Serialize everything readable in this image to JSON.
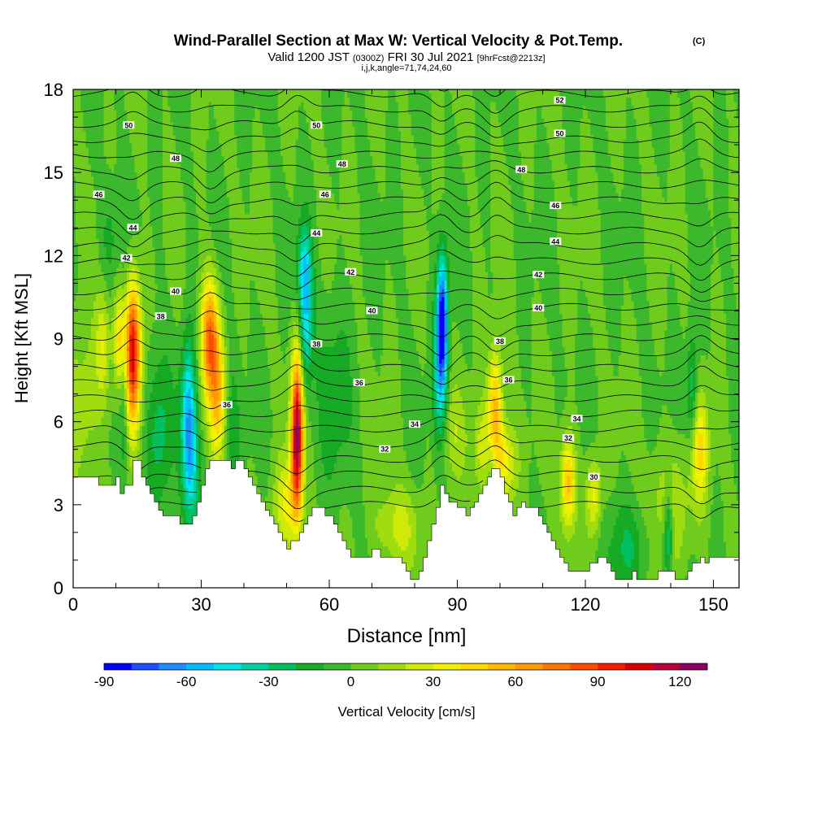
{
  "chart_data": {
    "type": "heatmap",
    "title": "Wind-Parallel Section at Max W: Vertical Velocity & Pot.Temp.",
    "title_mark": "(C)",
    "subtitle_main": "Valid 1200 JST",
    "subtitle_utc": "(0300Z)",
    "subtitle_date": "FRI 30 Jul 2021",
    "subtitle_fcst": "[9hrFcst@2213z]",
    "subtitle2": "i,j,k,angle=71,74,24,60",
    "xlabel": "Distance [nm]",
    "ylabel": "Height [Kft MSL]",
    "xlim": [
      0,
      156
    ],
    "ylim": [
      0,
      18
    ],
    "x_ticks": [
      0,
      30,
      60,
      90,
      120,
      150
    ],
    "y_ticks": [
      0,
      3,
      6,
      9,
      12,
      15,
      18
    ],
    "x_tick_labels": [
      "0",
      "30",
      "60",
      "90",
      "120",
      "150"
    ],
    "y_tick_labels": [
      "0",
      "3",
      "6",
      "9",
      "12",
      "15",
      "18"
    ],
    "colorbar": {
      "label": "Vertical Velocity [cm/s]",
      "min": -90,
      "max": 130,
      "step": 10,
      "tick_values": [
        -90,
        -60,
        -30,
        0,
        30,
        60,
        90,
        120
      ],
      "tick_labels": [
        "-90",
        "-60",
        "-30",
        "0",
        "30",
        "60",
        "90",
        "120"
      ],
      "colors": [
        "#0000ff",
        "#1f4fff",
        "#1f8bff",
        "#00bfff",
        "#00e5e5",
        "#00d1a0",
        "#00c060",
        "#17ab25",
        "#3cb82c",
        "#70cc1c",
        "#9fdd10",
        "#cfea08",
        "#f2f200",
        "#ffd800",
        "#ffba00",
        "#ff9a00",
        "#ff7500",
        "#ff4d00",
        "#f51d00",
        "#d80000",
        "#b8003d",
        "#8e0064"
      ]
    },
    "terrain_kft": [
      [
        0,
        4.0
      ],
      [
        6,
        4.0
      ],
      [
        6,
        3.7
      ],
      [
        10,
        3.7
      ],
      [
        10,
        4.0
      ],
      [
        11,
        4.0
      ],
      [
        11,
        3.4
      ],
      [
        12,
        3.4
      ],
      [
        12,
        3.7
      ],
      [
        14,
        3.7
      ],
      [
        14,
        4.6
      ],
      [
        16,
        4.6
      ],
      [
        16,
        4.0
      ],
      [
        17,
        4.0
      ],
      [
        17,
        3.7
      ],
      [
        18,
        3.7
      ],
      [
        18,
        3.4
      ],
      [
        19,
        3.4
      ],
      [
        19,
        3.1
      ],
      [
        20,
        3.1
      ],
      [
        20,
        2.8
      ],
      [
        21,
        2.8
      ],
      [
        21,
        2.6
      ],
      [
        25,
        2.6
      ],
      [
        25,
        2.3
      ],
      [
        28,
        2.3
      ],
      [
        28,
        2.6
      ],
      [
        29,
        2.6
      ],
      [
        29,
        3.1
      ],
      [
        30,
        3.1
      ],
      [
        30,
        3.7
      ],
      [
        31,
        3.7
      ],
      [
        31,
        4.3
      ],
      [
        32,
        4.3
      ],
      [
        32,
        4.6
      ],
      [
        37,
        4.6
      ],
      [
        37,
        4.3
      ],
      [
        38,
        4.3
      ],
      [
        38,
        4.6
      ],
      [
        40,
        4.6
      ],
      [
        40,
        4.3
      ],
      [
        41,
        4.3
      ],
      [
        41,
        4.0
      ],
      [
        42,
        4.0
      ],
      [
        42,
        3.7
      ],
      [
        43,
        3.7
      ],
      [
        43,
        3.4
      ],
      [
        44,
        3.4
      ],
      [
        44,
        3.1
      ],
      [
        45,
        3.1
      ],
      [
        45,
        2.8
      ],
      [
        46,
        2.8
      ],
      [
        46,
        2.6
      ],
      [
        47,
        2.6
      ],
      [
        47,
        2.3
      ],
      [
        48,
        2.3
      ],
      [
        48,
        2.0
      ],
      [
        49,
        2.0
      ],
      [
        49,
        1.7
      ],
      [
        50,
        1.7
      ],
      [
        50,
        1.4
      ],
      [
        51,
        1.4
      ],
      [
        51,
        1.7
      ],
      [
        53,
        1.7
      ],
      [
        53,
        2.0
      ],
      [
        54,
        2.0
      ],
      [
        54,
        2.3
      ],
      [
        55,
        2.3
      ],
      [
        55,
        2.6
      ],
      [
        56,
        2.6
      ],
      [
        56,
        2.9
      ],
      [
        59,
        2.9
      ],
      [
        59,
        2.6
      ],
      [
        61,
        2.6
      ],
      [
        61,
        2.3
      ],
      [
        62,
        2.3
      ],
      [
        62,
        2.0
      ],
      [
        63,
        2.0
      ],
      [
        63,
        1.7
      ],
      [
        64,
        1.7
      ],
      [
        64,
        1.4
      ],
      [
        65,
        1.4
      ],
      [
        65,
        1.1
      ],
      [
        70,
        1.1
      ],
      [
        70,
        1.4
      ],
      [
        72,
        1.4
      ],
      [
        72,
        1.1
      ],
      [
        77,
        1.1
      ],
      [
        77,
        0.9
      ],
      [
        78,
        0.9
      ],
      [
        78,
        0.6
      ],
      [
        79,
        0.6
      ],
      [
        79,
        0.3
      ],
      [
        81,
        0.3
      ],
      [
        81,
        0.6
      ],
      [
        82,
        0.6
      ],
      [
        82,
        1.1
      ],
      [
        83,
        1.1
      ],
      [
        83,
        1.7
      ],
      [
        84,
        1.7
      ],
      [
        84,
        2.3
      ],
      [
        85,
        2.3
      ],
      [
        85,
        2.9
      ],
      [
        86,
        2.9
      ],
      [
        86,
        3.7
      ],
      [
        87,
        3.7
      ],
      [
        87,
        3.4
      ],
      [
        88,
        3.4
      ],
      [
        88,
        3.1
      ],
      [
        90,
        3.1
      ],
      [
        90,
        2.9
      ],
      [
        92,
        2.9
      ],
      [
        92,
        2.6
      ],
      [
        93,
        2.6
      ],
      [
        93,
        2.9
      ],
      [
        94,
        2.9
      ],
      [
        94,
        3.1
      ],
      [
        95,
        3.1
      ],
      [
        95,
        3.4
      ],
      [
        96,
        3.4
      ],
      [
        96,
        3.7
      ],
      [
        97,
        3.7
      ],
      [
        97,
        4.0
      ],
      [
        98,
        4.0
      ],
      [
        98,
        4.3
      ],
      [
        100,
        4.3
      ],
      [
        100,
        4.0
      ],
      [
        101,
        4.0
      ],
      [
        101,
        3.4
      ],
      [
        102,
        3.4
      ],
      [
        102,
        3.1
      ],
      [
        103,
        3.1
      ],
      [
        103,
        2.6
      ],
      [
        104,
        2.6
      ],
      [
        104,
        2.9
      ],
      [
        105,
        2.9
      ],
      [
        105,
        3.1
      ],
      [
        106,
        3.1
      ],
      [
        106,
        2.9
      ],
      [
        109,
        2.9
      ],
      [
        109,
        2.6
      ],
      [
        110,
        2.6
      ],
      [
        110,
        2.3
      ],
      [
        111,
        2.3
      ],
      [
        111,
        2.0
      ],
      [
        112,
        2.0
      ],
      [
        112,
        1.7
      ],
      [
        113,
        1.7
      ],
      [
        113,
        1.4
      ],
      [
        114,
        1.4
      ],
      [
        114,
        1.1
      ],
      [
        115,
        1.1
      ],
      [
        115,
        0.9
      ],
      [
        116,
        0.9
      ],
      [
        116,
        0.6
      ],
      [
        121,
        0.6
      ],
      [
        121,
        0.9
      ],
      [
        123,
        0.9
      ],
      [
        123,
        1.1
      ],
      [
        125,
        1.1
      ],
      [
        125,
        0.9
      ],
      [
        126,
        0.9
      ],
      [
        126,
        0.6
      ],
      [
        127,
        0.6
      ],
      [
        127,
        0.3
      ],
      [
        131,
        0.3
      ],
      [
        131,
        0.6
      ],
      [
        132,
        0.6
      ],
      [
        132,
        0.3
      ],
      [
        137,
        0.3
      ],
      [
        137,
        0.6
      ],
      [
        141,
        0.6
      ],
      [
        141,
        0.3
      ],
      [
        144,
        0.3
      ],
      [
        144,
        0.6
      ],
      [
        145,
        0.6
      ],
      [
        145,
        0.9
      ],
      [
        147,
        0.9
      ],
      [
        147,
        1.1
      ],
      [
        148,
        1.1
      ],
      [
        148,
        0.9
      ],
      [
        149,
        0.9
      ],
      [
        149,
        1.1
      ],
      [
        156,
        1.1
      ]
    ],
    "updrafts": [
      {
        "x": 14,
        "z": 8.5,
        "w": 105,
        "sx": 1.3,
        "sz": 1.8
      },
      {
        "x": 11,
        "z": 9.0,
        "w": 45,
        "sx": 1.0,
        "sz": 1.2
      },
      {
        "x": 7,
        "z": 8.8,
        "w": 30,
        "sx": 1.2,
        "sz": 1.5
      },
      {
        "x": 32,
        "z": 9.0,
        "w": 75,
        "sx": 1.5,
        "sz": 1.5
      },
      {
        "x": 34,
        "z": 6.8,
        "w": 45,
        "sx": 1.5,
        "sz": 1.6
      },
      {
        "x": 52.5,
        "z": 5.5,
        "w": 120,
        "sx": 1.0,
        "sz": 2.0
      },
      {
        "x": 50,
        "z": 3.0,
        "w": 30,
        "sx": 2.2,
        "sz": 1.2
      },
      {
        "x": 99,
        "z": 6.6,
        "w": 55,
        "sx": 1.2,
        "sz": 1.5
      },
      {
        "x": 101,
        "z": 4.5,
        "w": 40,
        "sx": 2.0,
        "sz": 1.0
      },
      {
        "x": 96,
        "z": 5.0,
        "w": 25,
        "sx": 1.5,
        "sz": 1.2
      },
      {
        "x": 116,
        "z": 3.8,
        "w": 55,
        "sx": 1.2,
        "sz": 1.2
      },
      {
        "x": 122,
        "z": 3.3,
        "w": 35,
        "sx": 1.2,
        "sz": 1.0
      },
      {
        "x": 147,
        "z": 5.0,
        "w": 40,
        "sx": 1.3,
        "sz": 1.3
      },
      {
        "x": 76,
        "z": 2.2,
        "w": 25,
        "sx": 3.5,
        "sz": 1.0
      },
      {
        "x": 140,
        "z": 3.0,
        "w": 20,
        "sx": 4.0,
        "sz": 1.5
      },
      {
        "x": 2,
        "z": 6.5,
        "w": 20,
        "sx": 3.0,
        "sz": 2.0
      },
      {
        "x": 89,
        "z": 5.5,
        "w": 15,
        "sx": 2.5,
        "sz": 1.2
      }
    ],
    "downdrafts": [
      {
        "x": 54.5,
        "z": 9.8,
        "w": -48,
        "sx": 1.1,
        "sz": 1.8
      },
      {
        "x": 54,
        "z": 11.6,
        "w": -25,
        "sx": 1.2,
        "sz": 1.0
      },
      {
        "x": 86.5,
        "z": 9.8,
        "w": -80,
        "sx": 0.9,
        "sz": 1.6
      },
      {
        "x": 86,
        "z": 7.5,
        "w": -40,
        "sx": 1.2,
        "sz": 1.8
      },
      {
        "x": 27,
        "z": 6.2,
        "w": -55,
        "sx": 1.2,
        "sz": 2.0
      },
      {
        "x": 28,
        "z": 4.0,
        "w": -30,
        "sx": 1.3,
        "sz": 1.6
      },
      {
        "x": 12,
        "z": 7.5,
        "w": -28,
        "sx": 0.8,
        "sz": 2.5
      },
      {
        "x": 20,
        "z": 5.5,
        "w": -25,
        "sx": 2.0,
        "sz": 2.0
      },
      {
        "x": 139.5,
        "z": 2.0,
        "w": -40,
        "sx": 0.8,
        "sz": 1.2
      },
      {
        "x": 145,
        "z": 7.2,
        "w": -30,
        "sx": 0.9,
        "sz": 1.4
      },
      {
        "x": 37,
        "z": 5.5,
        "w": -20,
        "sx": 1.5,
        "sz": 2.0
      },
      {
        "x": 61,
        "z": 7.0,
        "w": -15,
        "sx": 3.0,
        "sz": 2.5
      },
      {
        "x": 8.5,
        "z": 12.5,
        "w": -15,
        "sx": 1.5,
        "sz": 1.5
      },
      {
        "x": 98,
        "z": 4.0,
        "w": -22,
        "sx": 1.0,
        "sz": 1.0
      },
      {
        "x": 130,
        "z": 1.5,
        "w": -18,
        "sx": 4.0,
        "sz": 1.2
      }
    ],
    "theta_contour_labels": [
      {
        "value": "52",
        "x": 114,
        "z": 17.6
      },
      {
        "value": "50",
        "x": 13,
        "z": 16.7
      },
      {
        "value": "50",
        "x": 57,
        "z": 16.7
      },
      {
        "value": "50",
        "x": 114,
        "z": 16.4
      },
      {
        "value": "48",
        "x": 24,
        "z": 15.5
      },
      {
        "value": "48",
        "x": 63,
        "z": 15.3
      },
      {
        "value": "48",
        "x": 105,
        "z": 15.1
      },
      {
        "value": "46",
        "x": 6,
        "z": 14.2
      },
      {
        "value": "46",
        "x": 59,
        "z": 14.2
      },
      {
        "value": "46",
        "x": 113,
        "z": 13.8
      },
      {
        "value": "44",
        "x": 14,
        "z": 13.0
      },
      {
        "value": "44",
        "x": 57,
        "z": 12.8
      },
      {
        "value": "44",
        "x": 113,
        "z": 12.5
      },
      {
        "value": "42",
        "x": 12.5,
        "z": 11.9
      },
      {
        "value": "42",
        "x": 65,
        "z": 11.4
      },
      {
        "value": "42",
        "x": 109,
        "z": 11.3
      },
      {
        "value": "40",
        "x": 24,
        "z": 10.7
      },
      {
        "value": "40",
        "x": 70,
        "z": 10.0
      },
      {
        "value": "40",
        "x": 109,
        "z": 10.1
      },
      {
        "value": "38",
        "x": 20.5,
        "z": 9.8
      },
      {
        "value": "38",
        "x": 57,
        "z": 8.8
      },
      {
        "value": "38",
        "x": 100,
        "z": 8.9
      },
      {
        "value": "36",
        "x": 67,
        "z": 7.4
      },
      {
        "value": "36",
        "x": 102,
        "z": 7.5
      },
      {
        "value": "36",
        "x": 36,
        "z": 6.6
      },
      {
        "value": "34",
        "x": 80,
        "z": 5.9
      },
      {
        "value": "34",
        "x": 118,
        "z": 6.1
      },
      {
        "value": "32",
        "x": 73,
        "z": 5.0
      },
      {
        "value": "32",
        "x": 116,
        "z": 5.4
      },
      {
        "value": "30",
        "x": 122,
        "z": 4.0
      }
    ]
  }
}
